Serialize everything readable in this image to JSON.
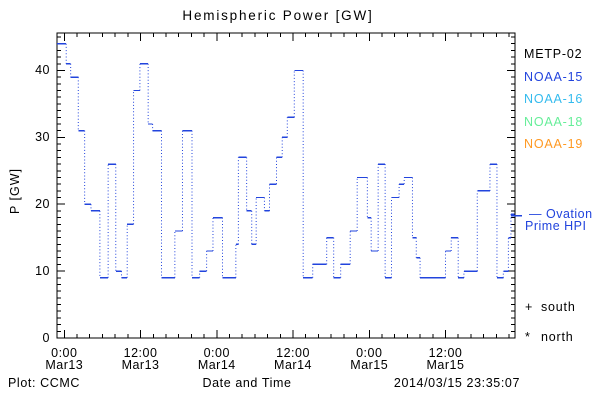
{
  "title": "Hemispheric Power [GW]",
  "axes": {
    "ylabel": "P [GW]",
    "xlabel": "Date and Time",
    "yticks": [
      {
        "value": 0,
        "label": "0"
      },
      {
        "value": 10,
        "label": "10"
      },
      {
        "value": 20,
        "label": "20"
      },
      {
        "value": 30,
        "label": "30"
      },
      {
        "value": 40,
        "label": "40"
      }
    ],
    "xticks": [
      {
        "hour": 0,
        "time": "0:00",
        "date": "Mar13"
      },
      {
        "hour": 12,
        "time": "12:00",
        "date": "Mar13"
      },
      {
        "hour": 24,
        "time": "0:00",
        "date": "Mar14"
      },
      {
        "hour": 36,
        "time": "12:00",
        "date": "Mar14"
      },
      {
        "hour": 48,
        "time": "0:00",
        "date": "Mar15"
      },
      {
        "hour": 60,
        "time": "12:00",
        "date": "Mar15"
      }
    ]
  },
  "legend": {
    "satellites": [
      {
        "label": "METP-02",
        "color": "#000000"
      },
      {
        "label": "NOAA-15",
        "color": "#2244dd"
      },
      {
        "label": "NOAA-16",
        "color": "#33bbee"
      },
      {
        "label": "NOAA-18",
        "color": "#66ee99"
      },
      {
        "label": "NOAA-19",
        "color": "#ff9922"
      }
    ],
    "ovation": {
      "line1": "— Ovation",
      "line2": "Prime HPI",
      "color": "#2244dd"
    },
    "markers": [
      {
        "symbol": "+",
        "label": "south"
      },
      {
        "symbol": "*",
        "label": "north"
      }
    ]
  },
  "footer": {
    "credit": "Plot: CCMC",
    "timestamp": "2014/03/15 23:35:07"
  },
  "chart_data": {
    "type": "line",
    "style": "steps with dotted vertical connectors",
    "title": "Hemispheric Power [GW]",
    "xlabel": "Date and Time",
    "ylabel": "P [GW]",
    "x_unit": "hours since 2014-03-13 00:00 UT",
    "xlim": [
      -1.15,
      70.94
    ],
    "ylim": [
      0,
      45.6
    ],
    "x_major_ticks_hours": [
      0,
      12,
      24,
      36,
      48,
      60
    ],
    "x_minor_step_hours": 2,
    "y_major_ticks": [
      0,
      10,
      20,
      30,
      40
    ],
    "y_minor_step": 1,
    "grid": false,
    "legend_position": "right",
    "ovation_marker_value_gw": 18.3,
    "series": [
      {
        "name": "Ovation Prime HPI",
        "color": "#2244dd",
        "t_end_hours": 70.9,
        "steps": [
          [
            -1.2,
            44
          ],
          [
            0.3,
            41
          ],
          [
            1.0,
            39
          ],
          [
            2.2,
            31
          ],
          [
            3.2,
            20
          ],
          [
            4.2,
            19
          ],
          [
            5.6,
            9
          ],
          [
            6.9,
            26
          ],
          [
            8.1,
            10
          ],
          [
            9.0,
            9
          ],
          [
            9.9,
            17
          ],
          [
            10.9,
            37
          ],
          [
            11.9,
            41
          ],
          [
            13.2,
            32
          ],
          [
            13.9,
            31
          ],
          [
            15.3,
            9
          ],
          [
            17.4,
            16
          ],
          [
            18.6,
            31
          ],
          [
            20.1,
            9
          ],
          [
            21.3,
            10
          ],
          [
            22.4,
            13
          ],
          [
            23.4,
            18
          ],
          [
            24.9,
            9
          ],
          [
            27.0,
            14
          ],
          [
            27.4,
            27
          ],
          [
            28.7,
            19
          ],
          [
            29.5,
            14
          ],
          [
            30.2,
            21
          ],
          [
            31.5,
            19
          ],
          [
            32.3,
            23
          ],
          [
            33.4,
            27
          ],
          [
            34.3,
            30
          ],
          [
            35.1,
            33
          ],
          [
            36.2,
            40
          ],
          [
            37.6,
            9
          ],
          [
            39.1,
            11
          ],
          [
            41.3,
            15
          ],
          [
            42.4,
            9
          ],
          [
            43.5,
            11
          ],
          [
            45.0,
            16
          ],
          [
            46.1,
            24
          ],
          [
            47.7,
            18
          ],
          [
            48.3,
            13
          ],
          [
            49.4,
            26
          ],
          [
            50.5,
            9
          ],
          [
            51.5,
            21
          ],
          [
            52.7,
            23
          ],
          [
            53.5,
            24
          ],
          [
            54.8,
            15
          ],
          [
            55.4,
            12
          ],
          [
            56.0,
            9
          ],
          [
            60.0,
            13
          ],
          [
            60.9,
            15
          ],
          [
            62.0,
            9
          ],
          [
            62.9,
            10
          ],
          [
            65.0,
            22
          ],
          [
            67.0,
            26
          ],
          [
            68.1,
            9
          ],
          [
            69.1,
            10
          ],
          [
            69.9,
            15
          ],
          [
            70.3,
            18.5
          ]
        ]
      }
    ]
  }
}
